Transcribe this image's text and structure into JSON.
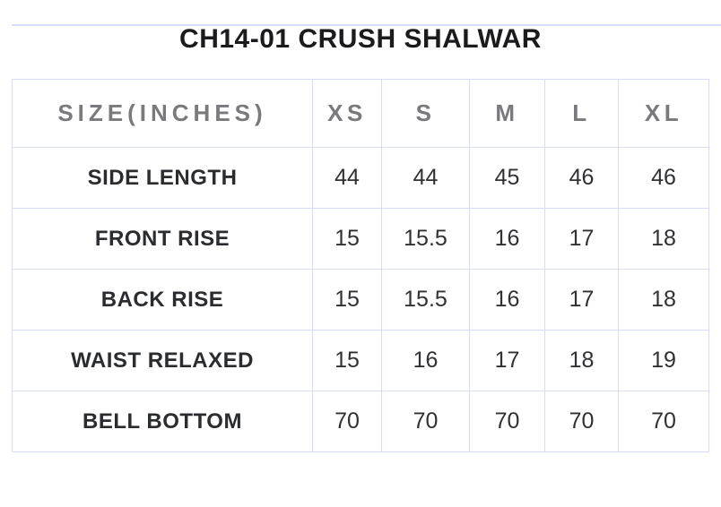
{
  "page": {
    "title": "CH14-01 CRUSH SHALWAR"
  },
  "size_chart": {
    "unit_header": "SIZE(INCHES)",
    "columns": [
      "SIZE(INCHES)",
      "XS",
      "S",
      "M",
      "L",
      "XL"
    ],
    "rows": [
      {
        "label": "SIDE LENGTH",
        "values": [
          "44",
          "44",
          "45",
          "46",
          "46"
        ]
      },
      {
        "label": "FRONT RISE",
        "values": [
          "15",
          "15.5",
          "16",
          "17",
          "18"
        ]
      },
      {
        "label": "BACK RISE",
        "values": [
          "15",
          "15.5",
          "16",
          "17",
          "18"
        ]
      },
      {
        "label": "WAIST RELAXED",
        "values": [
          "15",
          "16",
          "17",
          "18",
          "19"
        ]
      },
      {
        "label": "BELL BOTTOM",
        "values": [
          "70",
          "70",
          "70",
          "70",
          "70"
        ]
      }
    ]
  },
  "colors": {
    "table_border": "#d8dcf4",
    "header_text": "#7a7a7e",
    "row_label_text": "#2a2c2f",
    "value_text": "#2f3134",
    "title_text": "#1b1b1d",
    "top_strip": "#d9ddf7",
    "background": "#ffffff"
  }
}
